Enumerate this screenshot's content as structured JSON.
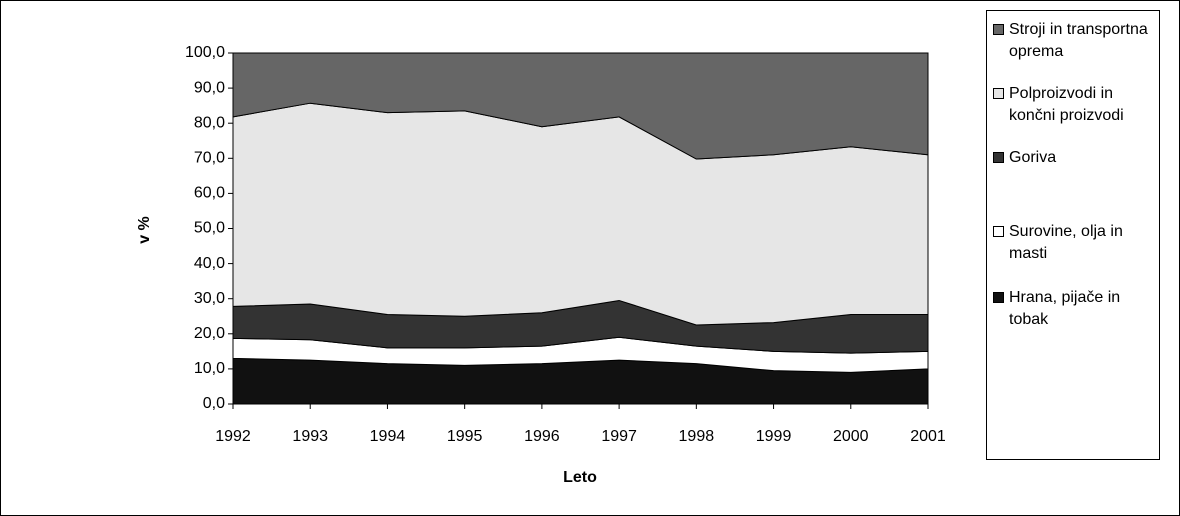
{
  "chart_data": {
    "type": "stacked_area",
    "xlabel": "Leto",
    "ylabel": "v %",
    "categories": [
      "1992",
      "1993",
      "1994",
      "1995",
      "1996",
      "1997",
      "1998",
      "1999",
      "2000",
      "2001"
    ],
    "series": [
      {
        "name": "Hrana, pijače in tobak",
        "color": "#111111",
        "values": [
          13,
          12.5,
          11.5,
          11,
          11.5,
          12.5,
          11.5,
          9.5,
          9,
          10
        ]
      },
      {
        "name": "Surovine, olja in masti",
        "color": "#ffffff",
        "values": [
          5.7,
          5.8,
          4.5,
          5,
          5,
          6.5,
          5,
          5.5,
          5.5,
          5
        ]
      },
      {
        "name": "Goriva",
        "color": "#333333",
        "values": [
          9.1,
          10.2,
          9.5,
          9,
          9.5,
          10.5,
          6,
          8.2,
          11,
          10.5
        ]
      },
      {
        "name": "Polproizvodi in končni proizvodi",
        "color": "#e6e6e6",
        "values": [
          54,
          57.2,
          57.5,
          58.5,
          53,
          52.3,
          47.3,
          47.8,
          47.8,
          45.5
        ]
      },
      {
        "name": "Stroji in transportna oprema",
        "color": "#666666",
        "values": [
          18.2,
          14.3,
          17,
          16.5,
          21,
          18.2,
          30.2,
          29,
          26.7,
          29
        ]
      }
    ],
    "ylim": [
      0,
      100
    ],
    "yticks": [
      {
        "value": 0,
        "label": "0,0"
      },
      {
        "value": 10,
        "label": "10,0"
      },
      {
        "value": 20,
        "label": "20,0"
      },
      {
        "value": 30,
        "label": "30,0"
      },
      {
        "value": 40,
        "label": "40,0"
      },
      {
        "value": 50,
        "label": "50,0"
      },
      {
        "value": 60,
        "label": "60,0"
      },
      {
        "value": 70,
        "label": "70,0"
      },
      {
        "value": 80,
        "label": "80,0"
      },
      {
        "value": 90,
        "label": "90,0"
      },
      {
        "value": 100,
        "label": "100,0"
      }
    ],
    "legend": "right"
  }
}
